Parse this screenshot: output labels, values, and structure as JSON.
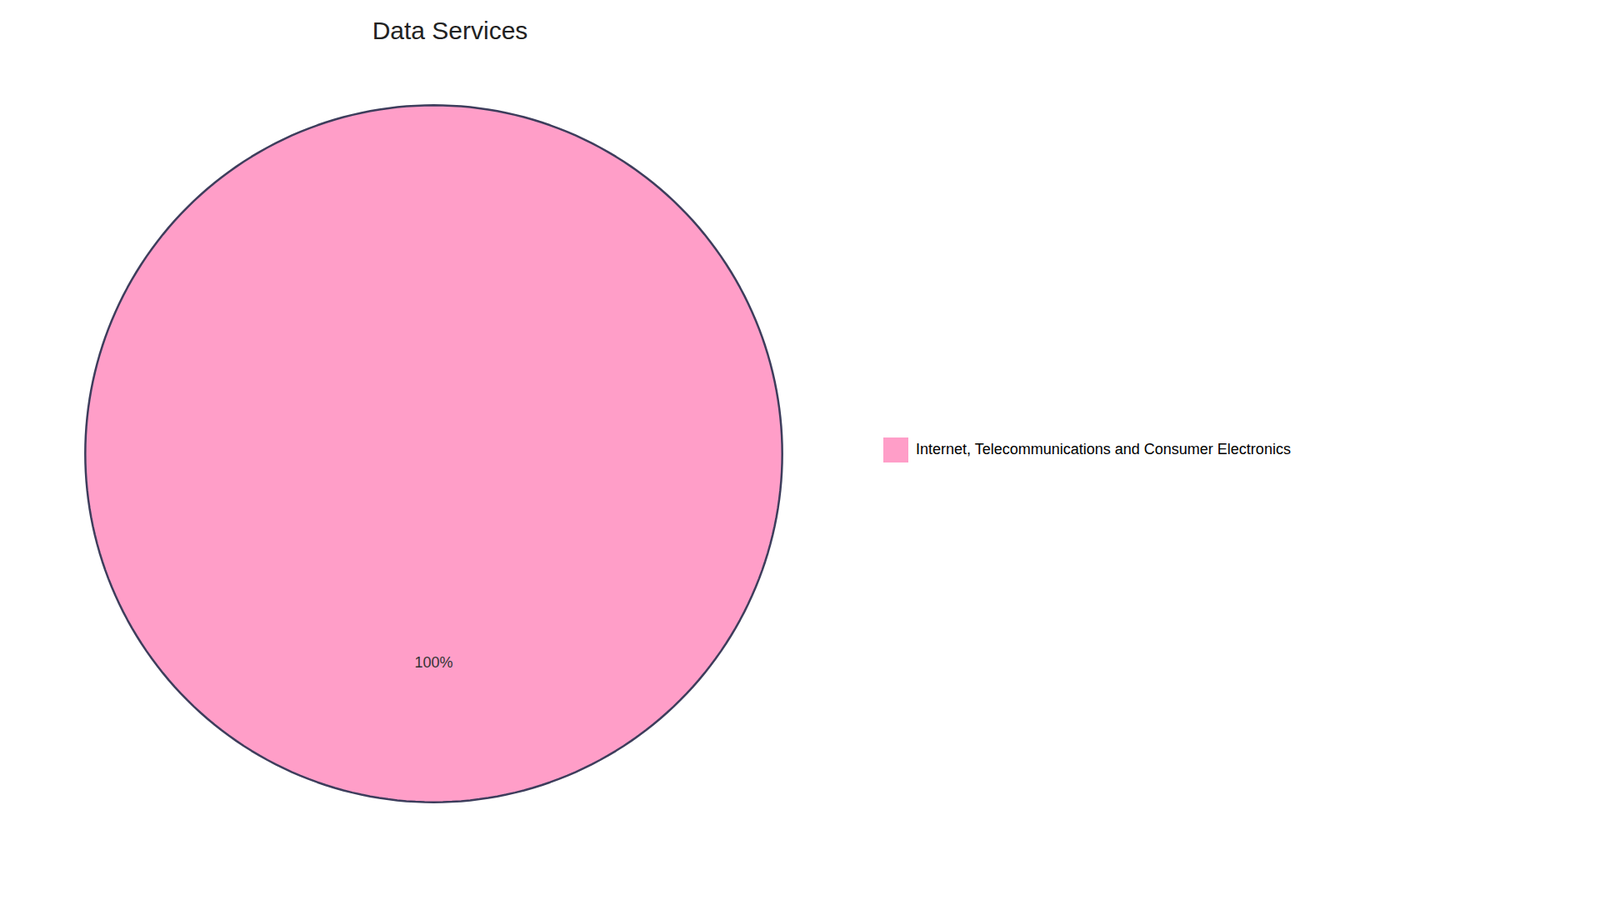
{
  "chart_data": {
    "type": "pie",
    "title": "Data Services",
    "categories": [
      "Internet, Telecommunications and Consumer Electronics"
    ],
    "values": [
      100
    ],
    "value_labels": [
      "100%"
    ],
    "colors": [
      "#FF9EC8"
    ],
    "data_labels": true,
    "legend": "right"
  }
}
